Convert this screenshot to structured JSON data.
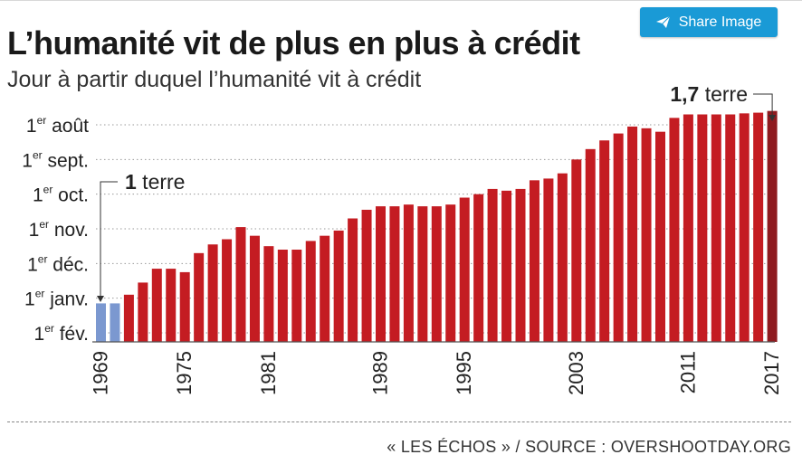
{
  "share": {
    "label": "Share Image",
    "icon": "paper-plane-icon"
  },
  "header": {
    "title": "L’humanité vit de plus en plus à crédit",
    "subtitle": "Jour à partir duquel l’humanité vit à crédit"
  },
  "source": "« LES ÉCHOS » / SOURCE : OVERSHOOTDAY.ORG",
  "colors": {
    "baseline": "#7b98d0",
    "bars": "#c41c22",
    "last_bar": "#8e1a1f",
    "accent": "#1a9ad6"
  },
  "chart_data": {
    "type": "bar",
    "title": "L’humanité vit de plus en plus à crédit",
    "subtitle": "Jour à partir duquel l’humanité vit à crédit",
    "x": [
      1969,
      1970,
      1971,
      1972,
      1973,
      1974,
      1975,
      1976,
      1977,
      1978,
      1979,
      1980,
      1981,
      1982,
      1983,
      1984,
      1985,
      1986,
      1987,
      1988,
      1989,
      1990,
      1991,
      1992,
      1993,
      1994,
      1995,
      1996,
      1997,
      1998,
      1999,
      2000,
      2001,
      2002,
      2003,
      2004,
      2005,
      2006,
      2007,
      2008,
      2009,
      2010,
      2011,
      2012,
      2013,
      2014,
      2015,
      2016,
      2017
    ],
    "y_label_positions": [
      {
        "label": "1",
        "sup": "er",
        "month": "fév.",
        "value": 0
      },
      {
        "label": "1",
        "sup": "er",
        "month": "janv.",
        "value": 1
      },
      {
        "label": "1",
        "sup": "er",
        "month": "déc.",
        "value": 2
      },
      {
        "label": "1",
        "sup": "er",
        "month": "nov.",
        "value": 3
      },
      {
        "label": "1",
        "sup": "er",
        "month": "oct.",
        "value": 4
      },
      {
        "label": "1",
        "sup": "er",
        "month": "sept.",
        "value": 5
      },
      {
        "label": "1",
        "sup": "er",
        "month": "août",
        "value": 6
      }
    ],
    "x_tick_labels": [
      "1969",
      "1975",
      "1981",
      "1989",
      "1995",
      "2003",
      "2011",
      "2017"
    ],
    "values": [
      0.85,
      0.85,
      1.1,
      1.45,
      1.85,
      1.85,
      1.75,
      2.3,
      2.55,
      2.7,
      3.05,
      2.8,
      2.5,
      2.4,
      2.4,
      2.65,
      2.8,
      2.95,
      3.3,
      3.55,
      3.65,
      3.65,
      3.7,
      3.65,
      3.65,
      3.7,
      3.9,
      4.0,
      4.15,
      4.1,
      4.15,
      4.4,
      4.45,
      4.6,
      5.0,
      5.3,
      5.55,
      5.75,
      5.95,
      5.9,
      5.8,
      6.2,
      6.3,
      6.3,
      6.3,
      6.3,
      6.33,
      6.35,
      6.4
    ],
    "ylim": [
      0,
      6.5
    ],
    "annotations": [
      {
        "bold": "1",
        "text": " terre",
        "year": 1969
      },
      {
        "bold": "1,7",
        "text": " terre",
        "year": 2017
      }
    ],
    "grid": "horizontal dotted"
  }
}
